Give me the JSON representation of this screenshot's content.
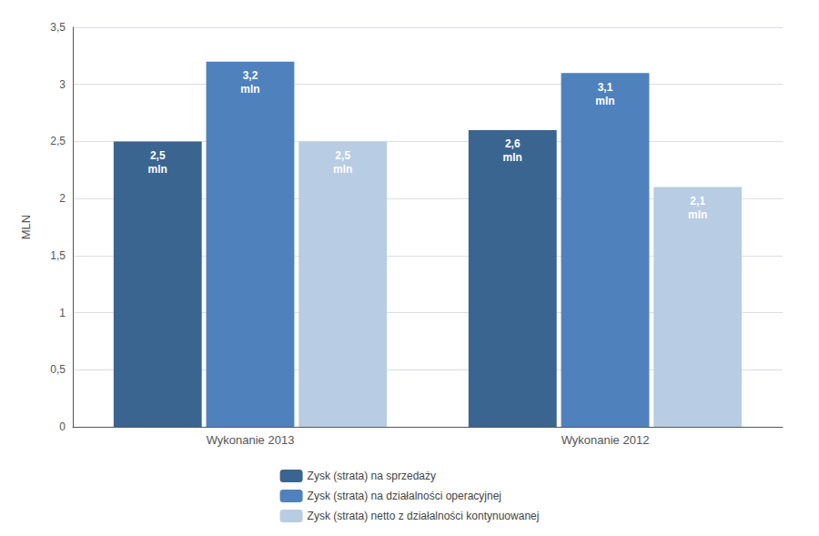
{
  "chart_data": {
    "type": "bar",
    "categories": [
      "Wykonanie 2013",
      "Wykonanie 2012"
    ],
    "series": [
      {
        "name": "Zysk (strata) na sprzedaży",
        "color": "#3A6591",
        "values": [
          2.5,
          2.6
        ],
        "value_labels": [
          "2,5\nmln",
          "2,6\nmln"
        ]
      },
      {
        "name": "Zysk (strata) na działalności operacyjnej",
        "color": "#4F81BD",
        "values": [
          3.2,
          3.1
        ],
        "value_labels": [
          "3,2\nmln",
          "3,1\nmln"
        ]
      },
      {
        "name": "Zysk (strata) netto z działalności kontynuowanej",
        "color": "#B8CCE4",
        "values": [
          2.5,
          2.1
        ],
        "value_labels": [
          "2,5\nmln",
          "2,1\nmln"
        ]
      }
    ],
    "ylabel": "MLN",
    "ylim": [
      0,
      3.5
    ],
    "yticks": [
      0,
      {
        "value": 0.5,
        "label": "0,5"
      },
      1,
      {
        "value": 1.5,
        "label": "1,5"
      },
      2,
      {
        "value": 2.5,
        "label": "2,5"
      },
      3,
      {
        "value": 3.5,
        "label": "3,5"
      }
    ],
    "grid": true,
    "legend": "bottom",
    "data_labels": true
  }
}
